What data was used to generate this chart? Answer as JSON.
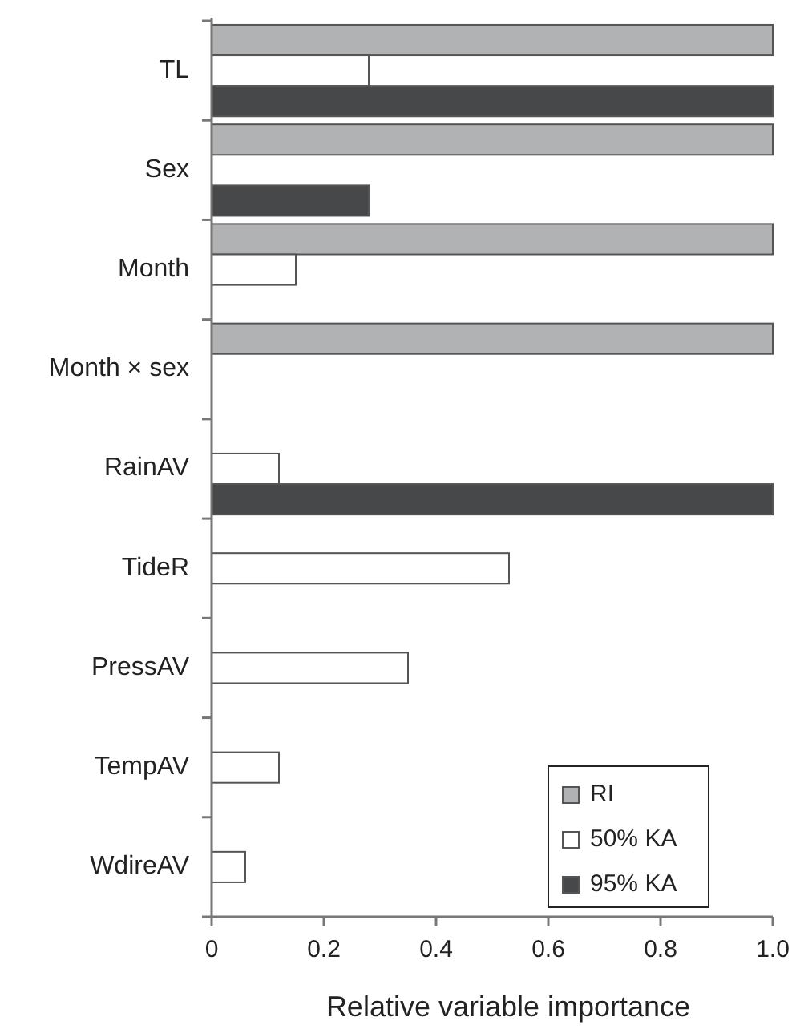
{
  "chart_data": {
    "type": "bar",
    "orientation": "horizontal",
    "xlabel": "Relative variable importance",
    "categories": [
      "TL",
      "Sex",
      "Month",
      "Month × sex",
      "RainAV",
      "TideR",
      "PressAV",
      "TempAV",
      "WdireAV"
    ],
    "series": [
      {
        "name": "RI",
        "color": "#b1b2b4",
        "values": [
          1,
          1,
          1,
          1,
          null,
          null,
          null,
          null,
          null
        ]
      },
      {
        "name": "50% KA",
        "color": "#ffffff",
        "values": [
          0.28,
          null,
          0.15,
          null,
          0.12,
          0.53,
          0.35,
          0.12,
          0.06
        ]
      },
      {
        "name": "95% KA",
        "color": "#47484a",
        "values": [
          1,
          0.28,
          null,
          null,
          1,
          null,
          null,
          null,
          null
        ]
      }
    ],
    "xlim": [
      0,
      1
    ],
    "xticks": [
      0,
      0.2,
      0.4,
      0.6,
      0.8,
      {
        "value": 1,
        "label": "1.0"
      }
    ],
    "grid": false,
    "legend": "bottom right"
  }
}
